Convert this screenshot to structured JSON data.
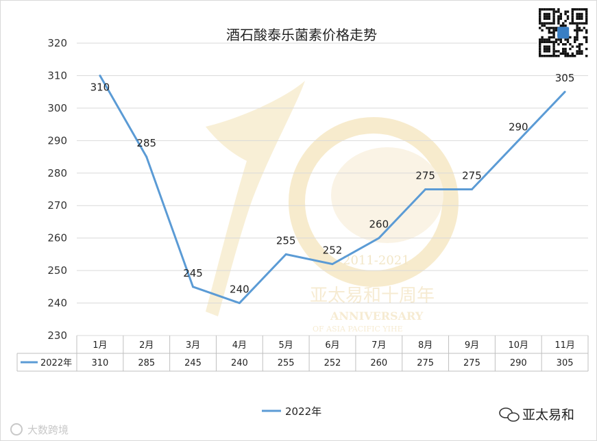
{
  "chart_data": {
    "type": "line",
    "title": "酒石酸泰乐菌素价格走势",
    "categories": [
      "1月",
      "2月",
      "3月",
      "4月",
      "5月",
      "6月",
      "7月",
      "8月",
      "9月",
      "10月",
      "11月"
    ],
    "series": [
      {
        "name": "2022年",
        "values": [
          310,
          285,
          245,
          240,
          255,
          252,
          260,
          275,
          275,
          290,
          305
        ],
        "color": "#5b9bd5"
      }
    ],
    "ylim": [
      230,
      320
    ],
    "yticks": [
      230,
      240,
      250,
      260,
      270,
      280,
      290,
      300,
      310,
      320
    ],
    "grid": true,
    "legend": "bottom",
    "data_table": true
  },
  "watermark": {
    "years": "2011-2021",
    "cn": "亚太易和十周年",
    "en": "ANNIVERSARY",
    "en2": "OF ASIA PACIFIC YIHE"
  },
  "footer": {
    "left_brand": "大数跨境",
    "right_brand": "亚太易和"
  },
  "icons": {
    "qr": "qr-code-icon",
    "wechat": "wechat-icon"
  }
}
